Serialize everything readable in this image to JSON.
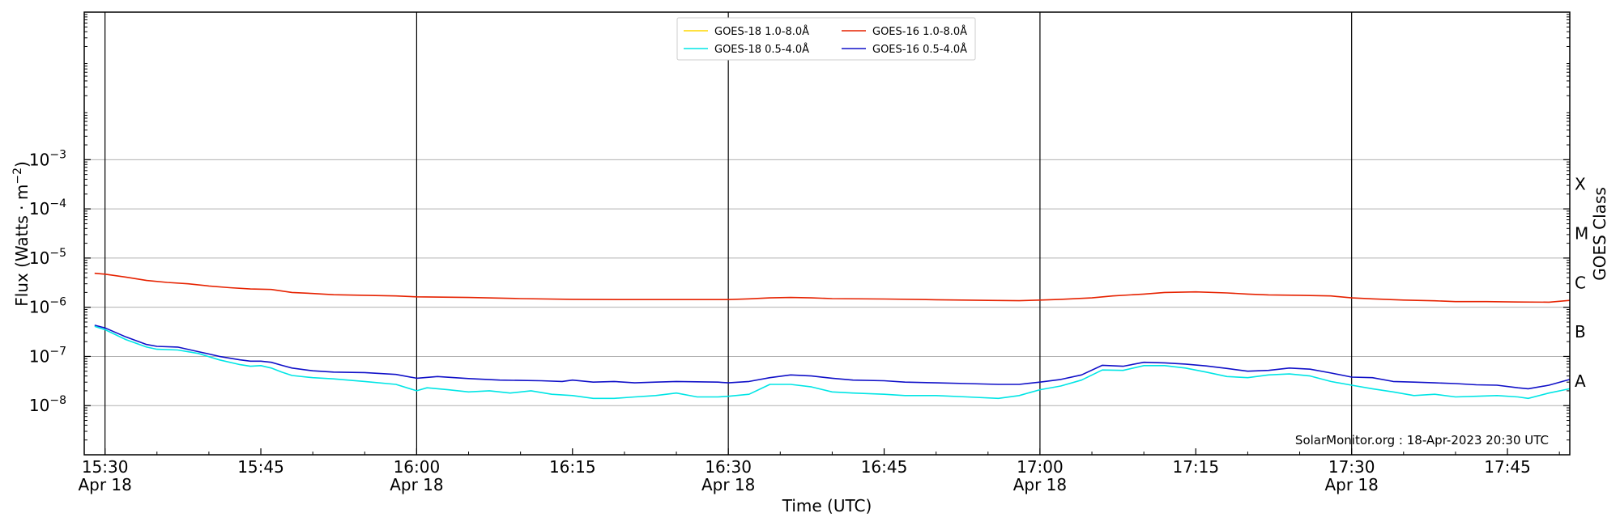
{
  "chart_data": {
    "type": "line",
    "xlabel": "Time (UTC)",
    "ylabel_main": "Flux (Watts · m",
    "ylabel_exp": "−2",
    "ylabel_close": ")",
    "right_label": "GOES Class",
    "credit": "SolarMonitor.org : 18-Apr-2023 20:30 UTC",
    "xlim_minutes": [
      -2,
      141
    ],
    "ylim_log10": [
      -9,
      0
    ],
    "y_ticks": [
      {
        "exp": -8,
        "base": "10",
        "sup": "−8"
      },
      {
        "exp": -7,
        "base": "10",
        "sup": "−7"
      },
      {
        "exp": -6,
        "base": "10",
        "sup": "−6"
      },
      {
        "exp": -5,
        "base": "10",
        "sup": "−5"
      },
      {
        "exp": -4,
        "base": "10",
        "sup": "−4"
      },
      {
        "exp": -3,
        "base": "10",
        "sup": "−3"
      }
    ],
    "x_ticks": [
      {
        "minute": 0,
        "label": "15:30",
        "sub": "Apr 18"
      },
      {
        "minute": 15,
        "label": "15:45",
        "sub": ""
      },
      {
        "minute": 30,
        "label": "16:00",
        "sub": "Apr 18"
      },
      {
        "minute": 45,
        "label": "16:15",
        "sub": ""
      },
      {
        "minute": 60,
        "label": "16:30",
        "sub": "Apr 18"
      },
      {
        "minute": 75,
        "label": "16:45",
        "sub": ""
      },
      {
        "minute": 90,
        "label": "17:00",
        "sub": "Apr 18"
      },
      {
        "minute": 105,
        "label": "17:15",
        "sub": ""
      },
      {
        "minute": 120,
        "label": "17:30",
        "sub": "Apr 18"
      },
      {
        "minute": 135,
        "label": "17:45",
        "sub": ""
      }
    ],
    "vertical_lines_minutes": [
      0,
      30,
      60,
      90,
      120
    ],
    "goes_classes": [
      {
        "label": "X",
        "exp": -3.5
      },
      {
        "label": "M",
        "exp": -4.5
      },
      {
        "label": "C",
        "exp": -5.5
      },
      {
        "label": "B",
        "exp": -6.5
      },
      {
        "label": "A",
        "exp": -7.5
      }
    ],
    "legend": [
      {
        "name": "GOES-18 1.0-8.0Å",
        "color": "#ffd700"
      },
      {
        "name": "GOES-18 0.5-4.0Å",
        "color": "#00e5e5"
      },
      {
        "name": "GOES-16 1.0-8.0Å",
        "color": "#e62200"
      },
      {
        "name": "GOES-16 0.5-4.0Å",
        "color": "#1010c8"
      }
    ],
    "series": [
      {
        "name": "GOES-16 1.0-8.0Å",
        "color": "#e62200",
        "points": [
          [
            -1,
            4.9e-06
          ],
          [
            0,
            4.7e-06
          ],
          [
            2,
            4.1e-06
          ],
          [
            4,
            3.5e-06
          ],
          [
            6,
            3.2e-06
          ],
          [
            8,
            3e-06
          ],
          [
            10,
            2.7e-06
          ],
          [
            12,
            2.5e-06
          ],
          [
            14,
            2.35e-06
          ],
          [
            16,
            2.3e-06
          ],
          [
            18,
            2e-06
          ],
          [
            20,
            1.9e-06
          ],
          [
            22,
            1.8e-06
          ],
          [
            25,
            1.75e-06
          ],
          [
            28,
            1.7e-06
          ],
          [
            30,
            1.63e-06
          ],
          [
            35,
            1.58e-06
          ],
          [
            40,
            1.5e-06
          ],
          [
            45,
            1.45e-06
          ],
          [
            50,
            1.43e-06
          ],
          [
            55,
            1.43e-06
          ],
          [
            60,
            1.43e-06
          ],
          [
            62,
            1.48e-06
          ],
          [
            64,
            1.55e-06
          ],
          [
            66,
            1.58e-06
          ],
          [
            68,
            1.55e-06
          ],
          [
            70,
            1.5e-06
          ],
          [
            75,
            1.47e-06
          ],
          [
            80,
            1.42e-06
          ],
          [
            85,
            1.38e-06
          ],
          [
            88,
            1.36e-06
          ],
          [
            90,
            1.4e-06
          ],
          [
            92,
            1.45e-06
          ],
          [
            95,
            1.55e-06
          ],
          [
            97,
            1.7e-06
          ],
          [
            100,
            1.85e-06
          ],
          [
            102,
            2e-06
          ],
          [
            105,
            2.05e-06
          ],
          [
            108,
            1.95e-06
          ],
          [
            110,
            1.85e-06
          ],
          [
            112,
            1.78e-06
          ],
          [
            115,
            1.75e-06
          ],
          [
            118,
            1.7e-06
          ],
          [
            120,
            1.55e-06
          ],
          [
            122,
            1.48e-06
          ],
          [
            125,
            1.4e-06
          ],
          [
            128,
            1.35e-06
          ],
          [
            130,
            1.3e-06
          ],
          [
            133,
            1.3e-06
          ],
          [
            136,
            1.28e-06
          ],
          [
            139,
            1.27e-06
          ],
          [
            141,
            1.38e-06
          ]
        ]
      },
      {
        "name": "GOES-16 0.5-4.0Å",
        "color": "#1010c8",
        "points": [
          [
            -1,
            4.3e-07
          ],
          [
            0,
            3.8e-07
          ],
          [
            2,
            2.5e-07
          ],
          [
            4,
            1.75e-07
          ],
          [
            5,
            1.6e-07
          ],
          [
            7,
            1.55e-07
          ],
          [
            9,
            1.25e-07
          ],
          [
            11,
            1e-07
          ],
          [
            13,
            8.5e-08
          ],
          [
            14,
            8e-08
          ],
          [
            15,
            8e-08
          ],
          [
            16,
            7.6e-08
          ],
          [
            17,
            6.6e-08
          ],
          [
            18,
            5.8e-08
          ],
          [
            20,
            5.1e-08
          ],
          [
            22,
            4.8e-08
          ],
          [
            25,
            4.7e-08
          ],
          [
            28,
            4.3e-08
          ],
          [
            30,
            3.6e-08
          ],
          [
            32,
            3.9e-08
          ],
          [
            35,
            3.55e-08
          ],
          [
            38,
            3.3e-08
          ],
          [
            40,
            3.25e-08
          ],
          [
            42,
            3.2e-08
          ],
          [
            44,
            3.1e-08
          ],
          [
            45,
            3.3e-08
          ],
          [
            47,
            3e-08
          ],
          [
            49,
            3.1e-08
          ],
          [
            51,
            2.9e-08
          ],
          [
            53,
            3e-08
          ],
          [
            55,
            3.1e-08
          ],
          [
            57,
            3.05e-08
          ],
          [
            59,
            3e-08
          ],
          [
            60,
            2.9e-08
          ],
          [
            62,
            3.1e-08
          ],
          [
            64,
            3.7e-08
          ],
          [
            66,
            4.2e-08
          ],
          [
            68,
            4e-08
          ],
          [
            70,
            3.6e-08
          ],
          [
            72,
            3.3e-08
          ],
          [
            75,
            3.2e-08
          ],
          [
            77,
            3e-08
          ],
          [
            80,
            2.9e-08
          ],
          [
            83,
            2.8e-08
          ],
          [
            86,
            2.7e-08
          ],
          [
            88,
            2.7e-08
          ],
          [
            90,
            3e-08
          ],
          [
            92,
            3.4e-08
          ],
          [
            94,
            4.2e-08
          ],
          [
            96,
            6.6e-08
          ],
          [
            98,
            6.3e-08
          ],
          [
            100,
            7.6e-08
          ],
          [
            102,
            7.4e-08
          ],
          [
            104,
            7e-08
          ],
          [
            106,
            6.4e-08
          ],
          [
            108,
            5.7e-08
          ],
          [
            110,
            5e-08
          ],
          [
            112,
            5.2e-08
          ],
          [
            114,
            5.8e-08
          ],
          [
            116,
            5.5e-08
          ],
          [
            118,
            4.6e-08
          ],
          [
            120,
            3.8e-08
          ],
          [
            122,
            3.7e-08
          ],
          [
            124,
            3.1e-08
          ],
          [
            126,
            3e-08
          ],
          [
            128,
            2.9e-08
          ],
          [
            130,
            2.8e-08
          ],
          [
            132,
            2.65e-08
          ],
          [
            134,
            2.6e-08
          ],
          [
            136,
            2.3e-08
          ],
          [
            137,
            2.2e-08
          ],
          [
            139,
            2.6e-08
          ],
          [
            141,
            3.4e-08
          ]
        ]
      },
      {
        "name": "GOES-18 0.5-4.0Å",
        "color": "#00e5e5",
        "points": [
          [
            -1,
            4.1e-07
          ],
          [
            0,
            3.5e-07
          ],
          [
            2,
            2.2e-07
          ],
          [
            4,
            1.55e-07
          ],
          [
            5,
            1.4e-07
          ],
          [
            7,
            1.35e-07
          ],
          [
            9,
            1.15e-07
          ],
          [
            11,
            8.5e-08
          ],
          [
            13,
            6.8e-08
          ],
          [
            14,
            6.3e-08
          ],
          [
            15,
            6.5e-08
          ],
          [
            16,
            5.8e-08
          ],
          [
            17,
            4.8e-08
          ],
          [
            18,
            4.1e-08
          ],
          [
            20,
            3.7e-08
          ],
          [
            22,
            3.5e-08
          ],
          [
            25,
            3.1e-08
          ],
          [
            28,
            2.7e-08
          ],
          [
            30,
            2e-08
          ],
          [
            31,
            2.3e-08
          ],
          [
            33,
            2.1e-08
          ],
          [
            35,
            1.9e-08
          ],
          [
            37,
            2e-08
          ],
          [
            39,
            1.8e-08
          ],
          [
            41,
            2e-08
          ],
          [
            43,
            1.7e-08
          ],
          [
            45,
            1.6e-08
          ],
          [
            47,
            1.4e-08
          ],
          [
            49,
            1.4e-08
          ],
          [
            51,
            1.5e-08
          ],
          [
            53,
            1.6e-08
          ],
          [
            55,
            1.8e-08
          ],
          [
            57,
            1.5e-08
          ],
          [
            59,
            1.5e-08
          ],
          [
            60,
            1.55e-08
          ],
          [
            62,
            1.7e-08
          ],
          [
            64,
            2.7e-08
          ],
          [
            66,
            2.7e-08
          ],
          [
            68,
            2.4e-08
          ],
          [
            70,
            1.9e-08
          ],
          [
            72,
            1.8e-08
          ],
          [
            75,
            1.7e-08
          ],
          [
            77,
            1.6e-08
          ],
          [
            80,
            1.6e-08
          ],
          [
            83,
            1.5e-08
          ],
          [
            86,
            1.4e-08
          ],
          [
            88,
            1.6e-08
          ],
          [
            90,
            2.1e-08
          ],
          [
            92,
            2.5e-08
          ],
          [
            94,
            3.3e-08
          ],
          [
            96,
            5.3e-08
          ],
          [
            98,
            5.2e-08
          ],
          [
            100,
            6.5e-08
          ],
          [
            102,
            6.5e-08
          ],
          [
            104,
            5.8e-08
          ],
          [
            106,
            4.8e-08
          ],
          [
            108,
            3.9e-08
          ],
          [
            110,
            3.7e-08
          ],
          [
            112,
            4.2e-08
          ],
          [
            114,
            4.4e-08
          ],
          [
            116,
            4e-08
          ],
          [
            118,
            3.1e-08
          ],
          [
            120,
            2.6e-08
          ],
          [
            122,
            2.2e-08
          ],
          [
            124,
            1.9e-08
          ],
          [
            126,
            1.6e-08
          ],
          [
            128,
            1.7e-08
          ],
          [
            130,
            1.5e-08
          ],
          [
            132,
            1.55e-08
          ],
          [
            134,
            1.6e-08
          ],
          [
            136,
            1.5e-08
          ],
          [
            137,
            1.4e-08
          ],
          [
            139,
            1.8e-08
          ],
          [
            141,
            2.2e-08
          ]
        ]
      }
    ]
  }
}
